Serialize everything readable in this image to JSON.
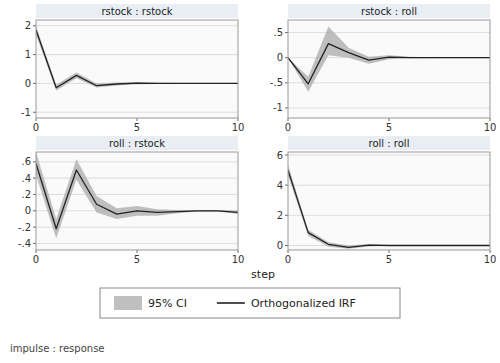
{
  "chart_data": [
    {
      "type": "line",
      "title": "rstock : rstock",
      "xlabel": "step",
      "x": [
        0,
        1,
        2,
        3,
        4,
        5,
        6,
        7,
        8,
        9,
        10
      ],
      "xlim": [
        0,
        10
      ],
      "xticks": [
        0,
        5,
        10
      ],
      "ylim": [
        -1.2,
        2.2
      ],
      "yticks": [
        -1,
        0,
        1,
        2
      ],
      "grid": true,
      "legend": "bottom",
      "annotations": [
        "impulse : response"
      ],
      "series": [
        {
          "name": "95% CI",
          "type": "area",
          "color": "#aaaaaa",
          "low": [
            1.7,
            -0.25,
            0.18,
            -0.14,
            -0.07,
            -0.03,
            -0.02,
            -0.01,
            0.0,
            0.0,
            0.0
          ],
          "high": [
            2.0,
            -0.05,
            0.38,
            0.0,
            0.03,
            0.05,
            0.02,
            0.01,
            0.01,
            0.0,
            0.0
          ]
        },
        {
          "name": "Orthogonalized IRF",
          "type": "line",
          "color": "#222222",
          "values": [
            1.85,
            -0.15,
            0.28,
            -0.08,
            -0.02,
            0.01,
            0.0,
            0.0,
            0.0,
            0.0,
            0.0
          ]
        }
      ]
    },
    {
      "type": "line",
      "title": "rstock : roll",
      "x": [
        0,
        1,
        2,
        3,
        4,
        5,
        6,
        7,
        8,
        9,
        10
      ],
      "xlim": [
        0,
        10
      ],
      "xticks": [
        0,
        5,
        10
      ],
      "ylim": [
        -1.2,
        0.75
      ],
      "yticks": [
        -1,
        {
          "value": -0.5,
          "label": "-.5"
        },
        0,
        {
          "value": 0.5,
          "label": ".5"
        }
      ],
      "grid": true,
      "series": [
        {
          "type": "area",
          "color": "#aaaaaa",
          "low": [
            0.0,
            -0.68,
            0.05,
            0.0,
            -0.12,
            -0.03,
            -0.01,
            -0.01,
            0.0,
            0.0,
            0.0
          ],
          "high": [
            0.0,
            -0.38,
            0.62,
            0.2,
            0.02,
            0.05,
            0.02,
            0.01,
            0.0,
            0.0,
            0.0
          ]
        },
        {
          "type": "line",
          "color": "#222222",
          "values": [
            0.0,
            -0.52,
            0.28,
            0.1,
            -0.05,
            0.01,
            0.0,
            0.0,
            0.0,
            0.0,
            0.0
          ]
        }
      ]
    },
    {
      "type": "line",
      "title": "roll : rstock",
      "x": [
        0,
        1,
        2,
        3,
        4,
        5,
        6,
        7,
        8,
        9,
        10
      ],
      "xlim": [
        0,
        10
      ],
      "xticks": [
        0,
        5,
        10
      ],
      "ylim": [
        -0.48,
        0.72
      ],
      "yticks": [
        {
          "value": -0.4,
          "label": "-.4"
        },
        {
          "value": -0.2,
          "label": "-.2"
        },
        0,
        {
          "value": 0.2,
          "label": ".2"
        },
        {
          "value": 0.4,
          "label": ".4"
        },
        {
          "value": 0.6,
          "label": ".6"
        }
      ],
      "grid": true,
      "series": [
        {
          "type": "area",
          "color": "#aaaaaa",
          "low": [
            0.44,
            -0.34,
            0.38,
            -0.02,
            -0.1,
            -0.06,
            -0.06,
            -0.03,
            -0.01,
            -0.01,
            -0.04
          ],
          "high": [
            0.72,
            -0.1,
            0.63,
            0.18,
            0.03,
            0.06,
            0.02,
            0.01,
            0.01,
            0.01,
            0.0
          ]
        },
        {
          "type": "line",
          "color": "#222222",
          "values": [
            0.58,
            -0.22,
            0.5,
            0.08,
            -0.04,
            0.0,
            -0.02,
            -0.01,
            0.0,
            0.0,
            -0.02
          ]
        }
      ]
    },
    {
      "type": "line",
      "title": "roll : roll",
      "x": [
        0,
        1,
        2,
        3,
        4,
        5,
        6,
        7,
        8,
        9,
        10
      ],
      "xlim": [
        0,
        10
      ],
      "xticks": [
        0,
        5,
        10
      ],
      "ylim": [
        -0.3,
        6.2
      ],
      "yticks": [
        0,
        2,
        4,
        6
      ],
      "grid": true,
      "series": [
        {
          "type": "area",
          "color": "#aaaaaa",
          "low": [
            4.65,
            0.65,
            -0.08,
            -0.22,
            -0.06,
            -0.02,
            -0.01,
            0.0,
            0.0,
            0.0,
            0.0
          ],
          "high": [
            5.35,
            1.05,
            0.22,
            0.0,
            0.1,
            0.03,
            0.01,
            0.01,
            0.0,
            0.0,
            0.0
          ]
        },
        {
          "type": "line",
          "color": "#222222",
          "values": [
            5.0,
            0.85,
            0.08,
            -0.12,
            0.02,
            0.0,
            0.0,
            0.0,
            0.0,
            0.0,
            0.0
          ]
        }
      ]
    }
  ]
}
